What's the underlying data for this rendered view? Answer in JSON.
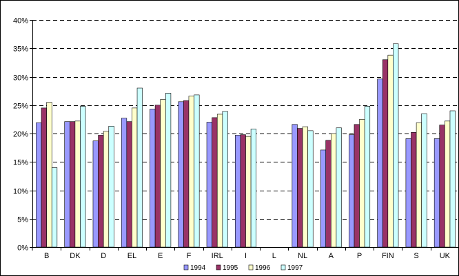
{
  "chart_data": {
    "type": "bar",
    "categories": [
      "B",
      "DK",
      "D",
      "EL",
      "E",
      "F",
      "IRL",
      "I",
      "L",
      "NL",
      "A",
      "P",
      "FIN",
      "S",
      "UK"
    ],
    "series": [
      {
        "name": "1994",
        "color": "#9999FF",
        "values": [
          21.9,
          22.1,
          18.7,
          22.7,
          24.3,
          25.6,
          22.0,
          19.7,
          null,
          21.6,
          17.1,
          19.8,
          29.6,
          19.1,
          19.1
        ]
      },
      {
        "name": "1995",
        "color": "#993366",
        "values": [
          24.5,
          22.1,
          19.7,
          22.1,
          25.0,
          25.8,
          22.8,
          19.8,
          null,
          20.9,
          18.8,
          21.6,
          33.0,
          20.2,
          21.5
        ]
      },
      {
        "name": "1996",
        "color": "#FFFFCC",
        "values": [
          25.5,
          22.2,
          20.4,
          24.5,
          26.0,
          26.6,
          23.4,
          19.5,
          null,
          21.2,
          20.0,
          22.5,
          33.8,
          21.9,
          22.2
        ]
      },
      {
        "name": "1997",
        "color": "#CCFFFF",
        "values": [
          14.0,
          24.8,
          21.3,
          28.0,
          27.1,
          26.8,
          23.9,
          20.8,
          null,
          20.5,
          21.0,
          24.8,
          35.8,
          23.5,
          24.0
        ]
      }
    ],
    "yticks": [
      "0%",
      "5%",
      "10%",
      "15%",
      "20%",
      "25%",
      "30%",
      "35%",
      "40%"
    ],
    "ylim": [
      0,
      40
    ],
    "grid": "horizontal dashed",
    "legend_position": "bottom"
  }
}
